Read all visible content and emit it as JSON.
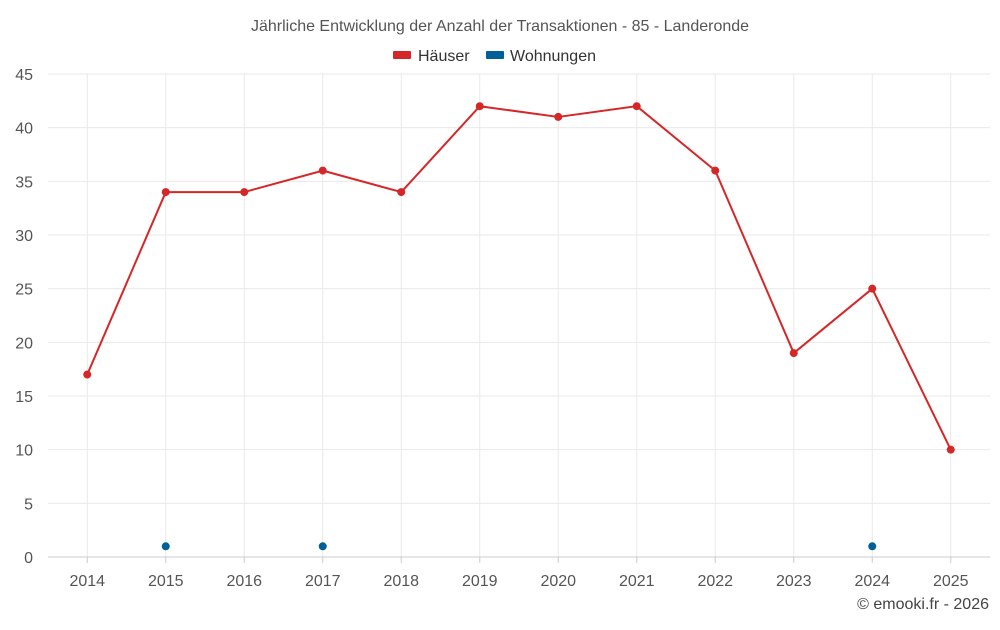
{
  "chart_data": {
    "type": "line",
    "title": "Jährliche Entwicklung der Anzahl der Transaktionen - 85 - Landeronde",
    "xlabel": "",
    "ylabel": "",
    "categories": [
      "2014",
      "2015",
      "2016",
      "2017",
      "2018",
      "2019",
      "2020",
      "2021",
      "2022",
      "2023",
      "2024",
      "2025"
    ],
    "ylim": [
      0,
      45
    ],
    "yticks": [
      0,
      5,
      10,
      15,
      20,
      25,
      30,
      35,
      40,
      45
    ],
    "grid": true,
    "legend_position": "top-center",
    "series": [
      {
        "name": "Häuser",
        "color": "#d62728",
        "connected": true,
        "values": [
          17,
          34,
          34,
          36,
          34,
          42,
          41,
          42,
          36,
          19,
          25,
          10
        ]
      },
      {
        "name": "Wohnungen",
        "color": "#005f99",
        "connected": false,
        "values": [
          null,
          1,
          null,
          1,
          null,
          null,
          null,
          null,
          null,
          null,
          1,
          null
        ]
      }
    ]
  },
  "credit": "© emooki.fr - 2026"
}
